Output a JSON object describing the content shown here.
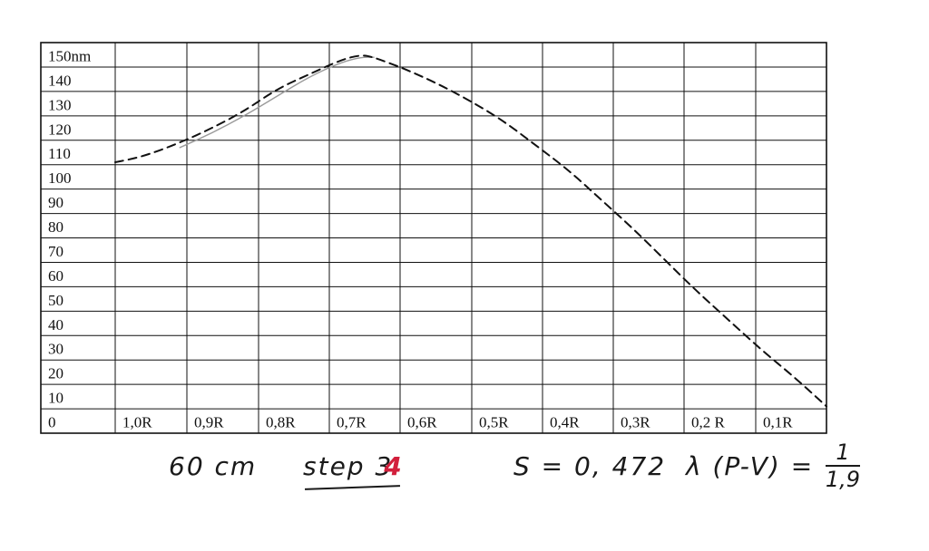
{
  "chart_data": {
    "type": "line",
    "title": "",
    "xlabel": "",
    "ylabel": "",
    "y_unit": "nm",
    "y_ticks": [
      "150nm",
      "140",
      "130",
      "120",
      "110",
      "100",
      "90",
      "80",
      "70",
      "60",
      "50",
      "40",
      "30",
      "20",
      "10"
    ],
    "corner_label": "0",
    "x_ticks": [
      "1,0R",
      "0,9R",
      "0,8R",
      "0,7R",
      "0,6R",
      "0,5R",
      "0,4R",
      "0,3R",
      "0,2 R",
      "0,1R"
    ],
    "xlim": [
      1.1,
      0.0
    ],
    "ylim": [
      0,
      155
    ],
    "grid": true,
    "legend": "none",
    "series": [
      {
        "style": "dashed",
        "color": "#111111",
        "x": [
          1.1,
          1.08,
          1.05,
          1.0,
          0.95,
          0.9,
          0.85,
          0.8,
          0.75,
          0.72,
          0.7,
          0.65,
          0.6,
          0.55,
          0.5,
          0.45,
          0.4,
          0.35,
          0.3,
          0.25,
          0.2,
          0.15,
          0.1,
          0.05,
          0.0
        ],
        "y": [
          101,
          102,
          104,
          109,
          115,
          122,
          131,
          137,
          143,
          145,
          144,
          139,
          133,
          126,
          118,
          108,
          98,
          86,
          74,
          61,
          48,
          36,
          24,
          13,
          1
        ]
      },
      {
        "style": "solid",
        "color": "#9a9a9a",
        "x": [
          1.0,
          0.95,
          0.9,
          0.85,
          0.8,
          0.75,
          0.72,
          0.7
        ],
        "y": [
          107,
          113,
          120,
          128,
          136,
          142,
          144,
          144
        ]
      }
    ]
  },
  "notes": {
    "distance": "60 cm",
    "step_text": "step 3",
    "step_correction": "4",
    "s_value": "S = 0, 472",
    "lambda_label": "λ (P-V) =",
    "fraction_numerator": "1",
    "fraction_denominator": "1,9"
  }
}
